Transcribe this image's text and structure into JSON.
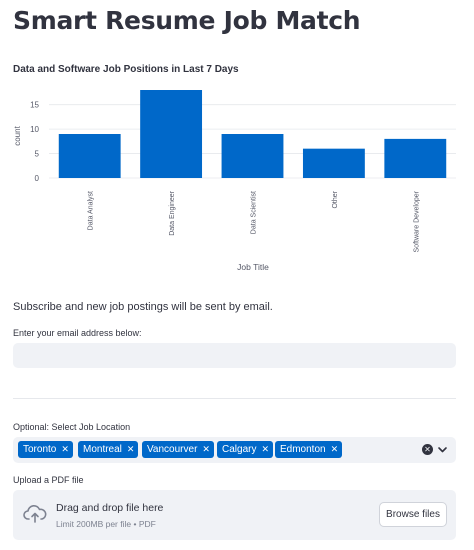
{
  "page": {
    "title": "Smart Resume Job Match"
  },
  "chart_data": {
    "type": "bar",
    "title": "Data and Software Job Positions in Last 7 Days",
    "categories": [
      "Data Analyst",
      "Data Engineer",
      "Data Scientist",
      "Other",
      "Software Developer"
    ],
    "values": [
      9,
      18,
      9,
      6,
      8
    ],
    "xlabel": "Job Title",
    "ylabel": "count",
    "yticks": [
      0,
      5,
      10,
      15
    ],
    "ylim": [
      0,
      18
    ],
    "grid": true,
    "bar_color": "#0068c9"
  },
  "subscribe": {
    "text": "Subscribe and new job postings will be sent by email.",
    "email_label": "Enter your email address below:",
    "email_value": ""
  },
  "location": {
    "label": "Optional: Select Job Location",
    "selected": [
      "Toronto",
      "Montreal",
      "Vancourver",
      "Calgary",
      "Edmonton"
    ],
    "remove_glyph": "✕",
    "clear_glyph": "✕"
  },
  "upload": {
    "label": "Upload a PDF file",
    "drop_text": "Drag and drop file here",
    "limit_text": "Limit 200MB per file • PDF",
    "browse_label": "Browse files"
  }
}
